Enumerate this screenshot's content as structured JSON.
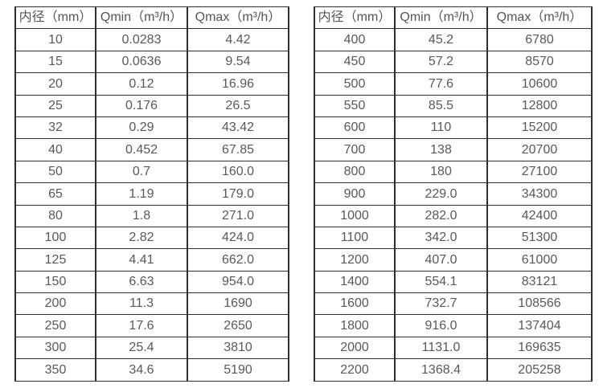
{
  "page": {
    "background": "#ffffff"
  },
  "colors": {
    "border": "#2f2f2f",
    "text": "#595959",
    "header_text": "#555555"
  },
  "chart_data": [
    {
      "type": "table",
      "title": "",
      "columns": [
        "内径（mm）",
        "Qmin（m³/h）",
        "Qmax（m³/h）"
      ],
      "rows": [
        [
          "10",
          "0.0283",
          "4.42"
        ],
        [
          "15",
          "0.0636",
          "9.54"
        ],
        [
          "20",
          "0.12",
          "16.96"
        ],
        [
          "25",
          "0.176",
          "26.5"
        ],
        [
          "32",
          "0.29",
          "43.42"
        ],
        [
          "40",
          "0.452",
          "67.85"
        ],
        [
          "50",
          "0.7",
          "160.0"
        ],
        [
          "65",
          "1.19",
          "179.0"
        ],
        [
          "80",
          "1.8",
          "271.0"
        ],
        [
          "100",
          "2.82",
          "424.0"
        ],
        [
          "125",
          "4.41",
          "662.0"
        ],
        [
          "150",
          "6.63",
          "954.0"
        ],
        [
          "200",
          "11.3",
          "1690"
        ],
        [
          "250",
          "17.6",
          "2650"
        ],
        [
          "300",
          "25.4",
          "3810"
        ],
        [
          "350",
          "34.6",
          "5190"
        ]
      ]
    },
    {
      "type": "table",
      "title": "",
      "columns": [
        "内径（mm）",
        "Qmin（m³/h）",
        "Qmax（m³/h）"
      ],
      "rows": [
        [
          "400",
          "45.2",
          "6780"
        ],
        [
          "450",
          "57.2",
          "8570"
        ],
        [
          "500",
          "77.6",
          "10600"
        ],
        [
          "550",
          "85.5",
          "12800"
        ],
        [
          "600",
          "110",
          "15200"
        ],
        [
          "700",
          "138",
          "20700"
        ],
        [
          "800",
          "180",
          "27100"
        ],
        [
          "900",
          "229.0",
          "34300"
        ],
        [
          "1000",
          "282.0",
          "42400"
        ],
        [
          "1100",
          "342.0",
          "51300"
        ],
        [
          "1200",
          "407.0",
          "61000"
        ],
        [
          "1400",
          "554.1",
          "83121"
        ],
        [
          "1600",
          "732.7",
          "108566"
        ],
        [
          "1800",
          "916.0",
          "137404"
        ],
        [
          "2000",
          "1131.0",
          "169635"
        ],
        [
          "2200",
          "1368.4",
          "205258"
        ]
      ]
    }
  ]
}
